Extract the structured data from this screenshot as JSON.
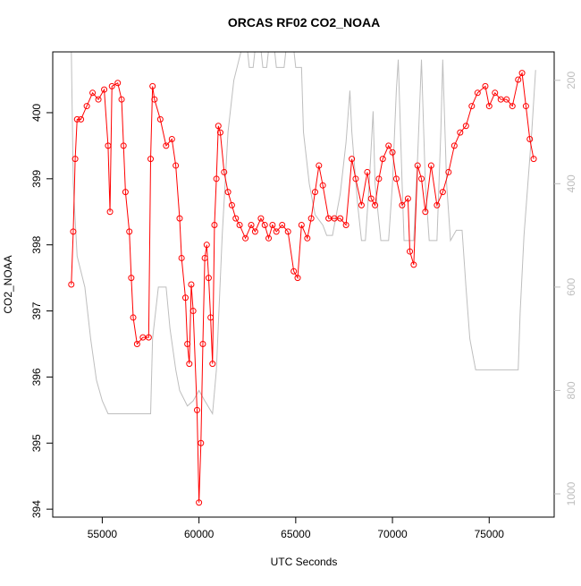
{
  "chart_data": {
    "type": "line",
    "title": "ORCAS RF02 CO2_NOAA",
    "xlabel": "UTC Seconds",
    "ylabel": "CO2_NOAA",
    "xlim": [
      52440,
      78360
    ],
    "ylim": [
      393.88,
      400.92
    ],
    "y2lim": [
      1045,
      145
    ],
    "xticks": [
      55000,
      60000,
      65000,
      70000,
      75000
    ],
    "yticks": [
      394,
      395,
      396,
      397,
      398,
      399,
      400
    ],
    "y2ticks": [
      200,
      400,
      600,
      800,
      1000
    ],
    "series": [
      {
        "color": "#ff0000",
        "marker": "circle",
        "x": [
          53400,
          53500,
          53600,
          53700,
          53900,
          54200,
          54500,
          54800,
          55100,
          55300,
          55400,
          55500,
          55800,
          56000,
          56100,
          56200,
          56400,
          56500,
          56600,
          56800,
          57100,
          57400,
          57500,
          57600,
          57700,
          58000,
          58300,
          58600,
          58800,
          59000,
          59100,
          59300,
          59400,
          59500,
          59600,
          59700,
          59900,
          60000,
          60100,
          60200,
          60300,
          60400,
          60500,
          60600,
          60700,
          60800,
          60900,
          61000,
          61100,
          61300,
          61500,
          61700,
          61900,
          62100,
          62400,
          62700,
          62900,
          63200,
          63400,
          63600,
          63800,
          64000,
          64300,
          64600,
          64900,
          65100,
          65300,
          65600,
          65800,
          66000,
          66200,
          66400,
          66700,
          67000,
          67300,
          67600,
          67900,
          68100,
          68400,
          68700,
          68900,
          69100,
          69300,
          69500,
          69800,
          70000,
          70200,
          70500,
          70800,
          70900,
          71100,
          71300,
          71500,
          71700,
          72000,
          72300,
          72600,
          72900,
          73200,
          73500,
          73800,
          74100,
          74400,
          74800,
          75000,
          75300,
          75600,
          75900,
          76200,
          76500,
          76700,
          76900,
          77100,
          77300
        ],
        "values": [
          397.4,
          398.2,
          399.3,
          399.9,
          399.9,
          400.1,
          400.3,
          400.2,
          400.35,
          399.5,
          398.5,
          400.4,
          400.45,
          400.2,
          399.5,
          398.8,
          398.2,
          397.5,
          396.9,
          396.5,
          396.6,
          396.6,
          399.3,
          400.4,
          400.2,
          399.9,
          399.5,
          399.6,
          399.2,
          398.4,
          397.8,
          397.2,
          396.5,
          396.2,
          397.4,
          397.0,
          395.5,
          394.1,
          395.0,
          396.5,
          397.8,
          398.0,
          397.5,
          396.9,
          396.2,
          398.3,
          399.0,
          399.8,
          399.7,
          399.1,
          398.8,
          398.6,
          398.4,
          398.3,
          398.1,
          398.3,
          398.2,
          398.4,
          398.3,
          398.1,
          398.3,
          398.2,
          398.3,
          398.2,
          397.6,
          397.5,
          398.3,
          398.1,
          398.4,
          398.8,
          399.2,
          398.9,
          398.4,
          398.4,
          398.4,
          398.3,
          399.3,
          399.0,
          398.6,
          399.1,
          398.7,
          398.6,
          399.0,
          399.3,
          399.5,
          399.4,
          399.0,
          398.6,
          398.7,
          397.9,
          397.7,
          399.2,
          399.0,
          398.5,
          399.2,
          398.6,
          398.8,
          399.1,
          399.5,
          399.7,
          399.8,
          400.1,
          400.3,
          400.4,
          400.1,
          400.3,
          400.2,
          400.2,
          400.1,
          400.5,
          400.6,
          400.1,
          399.6,
          399.3
        ]
      },
      {
        "color": "#bebebe",
        "axis": "y2",
        "x": [
          53400,
          53500,
          53700,
          54100,
          54400,
          54700,
          55000,
          55300,
          55500,
          57500,
          57600,
          57900,
          58300,
          58500,
          58800,
          59000,
          59400,
          59700,
          60000,
          60300,
          60700,
          60900,
          61200,
          61500,
          61800,
          62200,
          62500,
          62600,
          62800,
          62900,
          63200,
          63300,
          63500,
          63600,
          63900,
          64000,
          64400,
          64500,
          64900,
          65000,
          65300,
          65400,
          65700,
          66000,
          66400,
          66600,
          66900,
          67300,
          67600,
          67800,
          67900,
          68200,
          68400,
          68600,
          68800,
          69000,
          69100,
          69400,
          69800,
          70000,
          70200,
          70300,
          70500,
          70600,
          71100,
          71300,
          71500,
          71700,
          71900,
          72300,
          72500,
          72600,
          72800,
          73000,
          73300,
          73600,
          73800,
          74000,
          74300,
          74600,
          76500,
          76600,
          76800,
          77000,
          77200,
          77400
        ],
        "values": [
          140,
          400,
          540,
          600,
          700,
          780,
          820,
          845,
          845,
          845,
          700,
          600,
          600,
          680,
          760,
          800,
          830,
          820,
          800,
          820,
          845,
          760,
          500,
          300,
          200,
          140,
          140,
          175,
          175,
          140,
          140,
          175,
          175,
          140,
          140,
          175,
          175,
          140,
          140,
          175,
          175,
          300,
          400,
          460,
          480,
          500,
          500,
          420,
          320,
          220,
          300,
          440,
          510,
          510,
          400,
          260,
          400,
          510,
          510,
          400,
          220,
          160,
          400,
          510,
          510,
          350,
          160,
          400,
          510,
          510,
          300,
          160,
          400,
          510,
          490,
          490,
          600,
          700,
          760,
          760,
          760,
          650,
          500,
          400,
          300,
          180
        ]
      }
    ]
  }
}
